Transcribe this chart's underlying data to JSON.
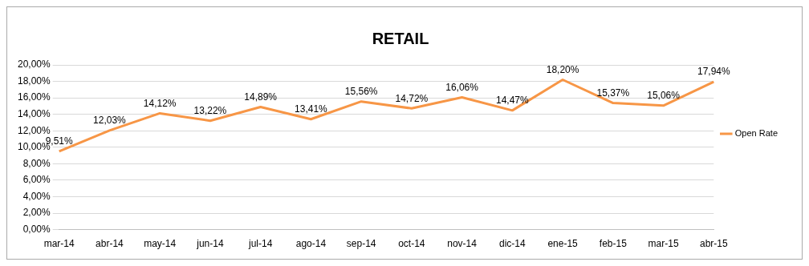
{
  "chart_data": {
    "type": "line",
    "title": "RETAIL",
    "categories": [
      "mar-14",
      "abr-14",
      "may-14",
      "jun-14",
      "jul-14",
      "ago-14",
      "sep-14",
      "oct-14",
      "nov-14",
      "dic-14",
      "ene-15",
      "feb-15",
      "mar-15",
      "abr-15"
    ],
    "series": [
      {
        "name": "Open Rate",
        "color": "#f79646",
        "values": [
          9.51,
          12.03,
          14.12,
          13.22,
          14.89,
          13.41,
          15.56,
          14.72,
          16.06,
          14.47,
          18.2,
          15.37,
          15.06,
          17.94
        ],
        "value_labels": [
          "9,51%",
          "12,03%",
          "14,12%",
          "13,22%",
          "14,89%",
          "13,41%",
          "15,56%",
          "14,72%",
          "16,06%",
          "14,47%",
          "18,20%",
          "15,37%",
          "15,06%",
          "17,94%"
        ]
      }
    ],
    "ylim": [
      0,
      20
    ],
    "yticks": [
      {
        "value": 0,
        "label": "0,00%"
      },
      {
        "value": 2,
        "label": "2,00%"
      },
      {
        "value": 4,
        "label": "4,00%"
      },
      {
        "value": 6,
        "label": "6,00%"
      },
      {
        "value": 8,
        "label": "8,00%"
      },
      {
        "value": 10,
        "label": "10,00%"
      },
      {
        "value": 12,
        "label": "12,00%"
      },
      {
        "value": 14,
        "label": "14,00%"
      },
      {
        "value": 16,
        "label": "16,00%"
      },
      {
        "value": 18,
        "label": "18,00%"
      },
      {
        "value": 20,
        "label": "20,00%"
      }
    ],
    "grid": "y",
    "legend": "right",
    "marker": "none",
    "line_style": "solid"
  }
}
